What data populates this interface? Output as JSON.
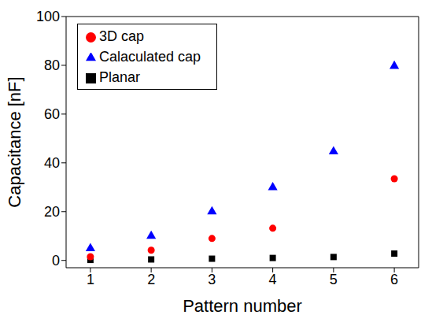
{
  "chart_data": {
    "type": "scatter",
    "x": [
      1,
      2,
      3,
      4,
      5,
      6
    ],
    "series": [
      {
        "name": "Planar",
        "color": "#000000",
        "marker": "square",
        "values": [
          0.2,
          0.4,
          0.7,
          1.0,
          1.4,
          2.8
        ]
      },
      {
        "name": "3D cap",
        "color": "#ff0000",
        "marker": "circle",
        "values": [
          1.5,
          4.2,
          9.0,
          13.2,
          null,
          33.5
        ]
      },
      {
        "name": "Calaculated cap",
        "color": "#0000ff",
        "marker": "triangle",
        "values": [
          4.9,
          10,
          20,
          29.9,
          44.6,
          79.7
        ]
      }
    ],
    "x_label": "Pattern number",
    "y_label": "Capacitance [nF]",
    "xlim": [
      0.6,
      6.4
    ],
    "ylim": [
      -3,
      100
    ],
    "xticks": [
      1,
      2,
      3,
      4,
      5,
      6
    ],
    "yticks": [
      0,
      20,
      40,
      60,
      80,
      100
    ],
    "grid": false,
    "legend": "upper left"
  }
}
